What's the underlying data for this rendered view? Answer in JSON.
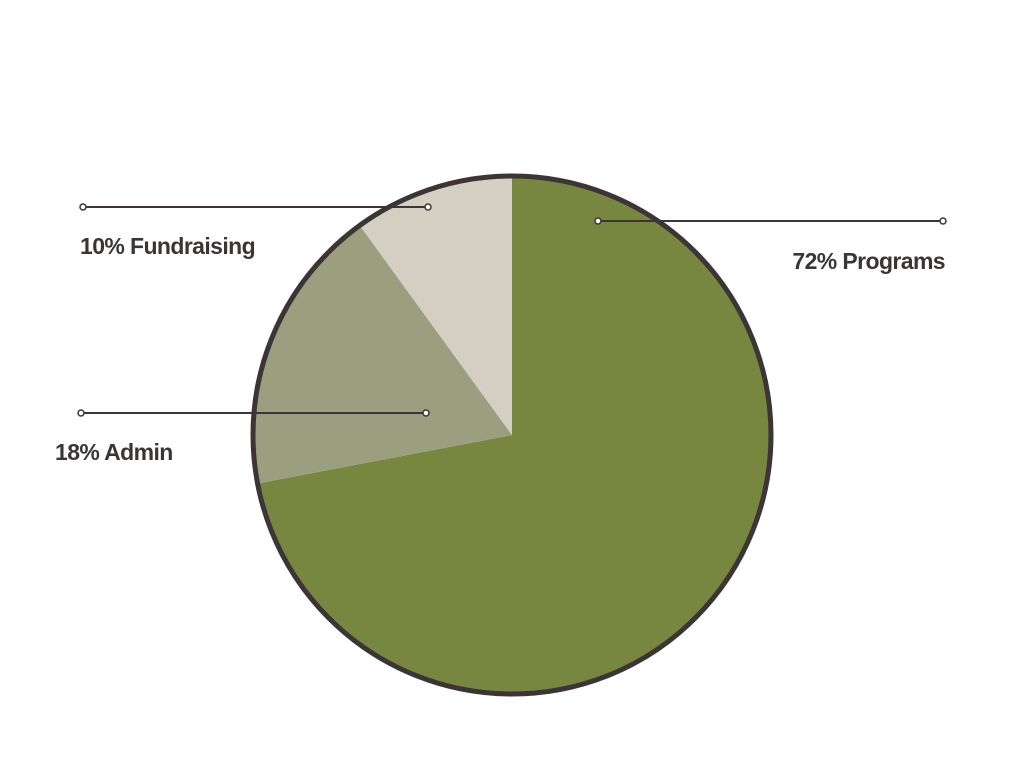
{
  "chart_data": {
    "type": "pie",
    "categories": [
      "Programs",
      "Admin",
      "Fundraising"
    ],
    "values": [
      72,
      18,
      10
    ],
    "value_labels": [
      "72%",
      "18%",
      "10%"
    ],
    "colors": [
      "#778740",
      "#9c9e80",
      "#d3cfc2"
    ]
  }
}
